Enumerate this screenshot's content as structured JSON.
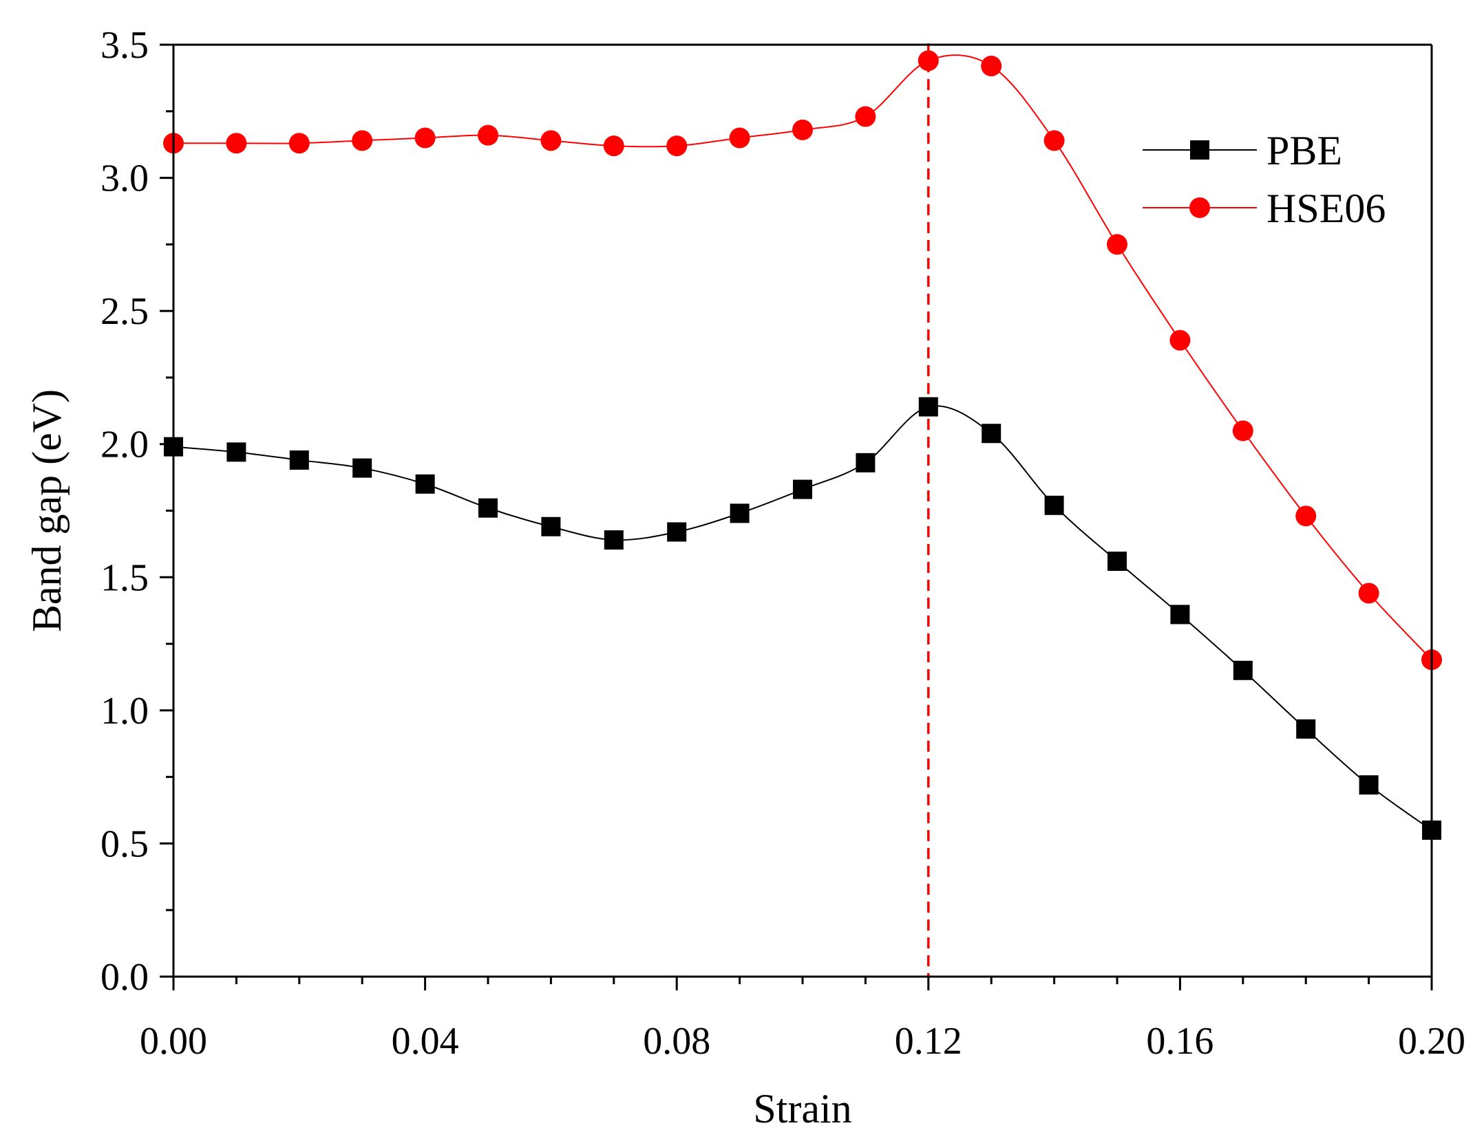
{
  "chart_data": {
    "type": "line",
    "title": "",
    "xlabel": "Strain",
    "ylabel": "Band gap (eV)",
    "xlim": [
      0,
      0.2
    ],
    "ylim": [
      0,
      3.5
    ],
    "x_ticks": [
      0,
      0.04,
      0.08,
      0.12,
      0.16,
      0.2
    ],
    "x_tick_labels": [
      "0.00",
      "0.04",
      "0.08",
      "0.12",
      "0.16",
      "0.20"
    ],
    "y_ticks": [
      0,
      0.5,
      1.0,
      1.5,
      2.0,
      2.5,
      3.0,
      3.5
    ],
    "y_tick_labels": [
      "0.0",
      "0.5",
      "1.0",
      "1.5",
      "2.0",
      "2.5",
      "3.0",
      "3.5"
    ],
    "x": [
      0,
      0.01,
      0.02,
      0.03,
      0.04,
      0.05,
      0.06,
      0.07,
      0.08,
      0.09,
      0.1,
      0.11,
      0.12,
      0.13,
      0.14,
      0.15,
      0.16,
      0.17,
      0.18,
      0.19,
      0.2
    ],
    "series": [
      {
        "name": "PBE",
        "marker": "square",
        "color": "#000000",
        "values": [
          1.99,
          1.97,
          1.94,
          1.91,
          1.85,
          1.76,
          1.69,
          1.64,
          1.67,
          1.74,
          1.83,
          1.93,
          2.14,
          2.04,
          1.77,
          1.56,
          1.36,
          1.15,
          0.93,
          0.72,
          0.55
        ]
      },
      {
        "name": "HSE06",
        "marker": "circle",
        "color": "#ff0000",
        "values": [
          3.13,
          3.13,
          3.13,
          3.14,
          3.15,
          3.16,
          3.14,
          3.12,
          3.12,
          3.15,
          3.18,
          3.23,
          3.44,
          3.42,
          3.14,
          2.75,
          2.39,
          2.05,
          1.73,
          1.44,
          1.19
        ]
      }
    ],
    "reference_line": {
      "x": 0.12,
      "color": "#ff0000",
      "style": "dashed"
    },
    "legend_position": "top-right",
    "grid": false
  }
}
